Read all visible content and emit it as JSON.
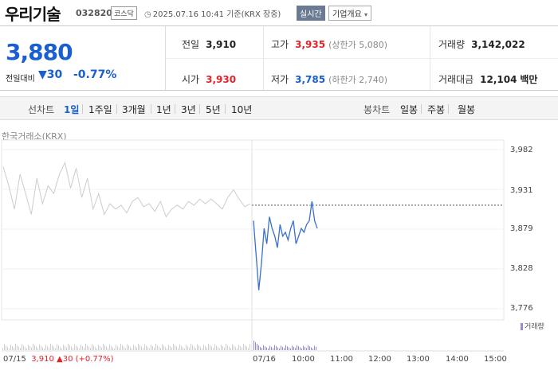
{
  "header": {
    "title": "우리기술",
    "code": "032820",
    "market": "코스닥",
    "datetime": "2025.07.16 10:41 기준(KRX 장중)",
    "realtime_label": "실시간",
    "company_label": "기업개요"
  },
  "summary": {
    "price": "3,880",
    "change_label": "전일대비",
    "change_value": "30",
    "change_pct": "-0.77%",
    "prev_close": {
      "label": "전일",
      "value": "3,910"
    },
    "open": {
      "label": "시가",
      "value": "3,930"
    },
    "high": {
      "label": "고가",
      "value": "3,935",
      "sub": "(상한가 5,080)"
    },
    "low": {
      "label": "저가",
      "value": "3,785",
      "sub": "(하한가 2,740)"
    },
    "volume": {
      "label": "거래량",
      "value": "3,142,022"
    },
    "amount": {
      "label": "거래대금",
      "value": "12,104",
      "unit": "백만"
    }
  },
  "tabs": {
    "line_label": "선차트",
    "line_items": [
      "1일",
      "1주일",
      "3개월",
      "1년",
      "3년",
      "5년",
      "10년"
    ],
    "candle_label": "봉차트",
    "candle_items": [
      "일봉",
      "주봉",
      "월봉"
    ]
  },
  "chart": {
    "source": "한국거래소(KRX)",
    "volume_legend": "거래량",
    "footer_date": "07/15",
    "footer_price": "3,910",
    "footer_change": "▲30 (+0.77%)",
    "colors": {
      "prev_line": "#cccccc",
      "today_line": "#3a6fd0",
      "fill": "#dbe6f7",
      "volume": "#9a8ac9"
    }
  },
  "chart_data": {
    "type": "line",
    "yticks": [
      "3,982",
      "3,931",
      "3,879",
      "3,828",
      "3,776"
    ],
    "ylim": [
      3776,
      3982
    ],
    "xticks": [
      "07/16",
      "10:00",
      "11:00",
      "12:00",
      "13:00",
      "14:00",
      "15:00"
    ],
    "prev_close": 3910,
    "series": [
      {
        "values": [
          3960,
          3935,
          3905,
          3950,
          3925,
          3898,
          3945,
          3912,
          3935,
          3925,
          3950,
          3965,
          3932,
          3958,
          3920,
          3945,
          3905,
          3925,
          3898,
          3912,
          3905,
          3910,
          3900,
          3915,
          3920,
          3908,
          3912,
          3902,
          3915,
          3895,
          3905,
          3910,
          3905,
          3915,
          3910,
          3918,
          3912,
          3918,
          3912,
          3905,
          3920,
          3930,
          3918,
          3908,
          3912
        ]
      },
      {
        "values": [
          3890,
          3845,
          3800,
          3835,
          3880,
          3860,
          3895,
          3880,
          3870,
          3855,
          3885,
          3870,
          3875,
          3865,
          3880,
          3890,
          3860,
          3870,
          3880,
          3875,
          3885,
          3890,
          3915,
          3890,
          3880
        ]
      }
    ]
  }
}
